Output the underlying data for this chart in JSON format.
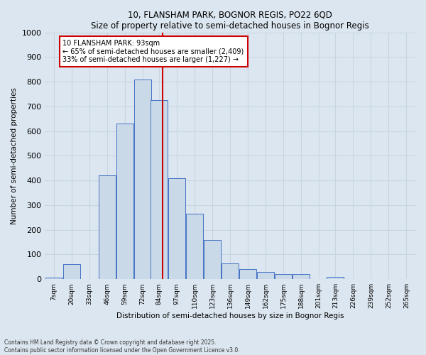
{
  "title1": "10, FLANSHAM PARK, BOGNOR REGIS, PO22 6QD",
  "title2": "Size of property relative to semi-detached houses in Bognor Regis",
  "xlabel": "Distribution of semi-detached houses by size in Bognor Regis",
  "ylabel": "Number of semi-detached properties",
  "bins": [
    7,
    20,
    33,
    46,
    59,
    72,
    84,
    97,
    110,
    123,
    136,
    149,
    162,
    175,
    188,
    201,
    213,
    226,
    239,
    252,
    265
  ],
  "bin_labels": [
    "7sqm",
    "20sqm",
    "33sqm",
    "46sqm",
    "59sqm",
    "72sqm",
    "84sqm",
    "97sqm",
    "110sqm",
    "123sqm",
    "136sqm",
    "149sqm",
    "162sqm",
    "175sqm",
    "188sqm",
    "201sqm",
    "213sqm",
    "226sqm",
    "239sqm",
    "252sqm",
    "265sqm"
  ],
  "values": [
    5,
    60,
    2,
    420,
    630,
    810,
    725,
    410,
    265,
    160,
    65,
    40,
    30,
    20,
    20,
    2,
    10,
    2,
    2,
    2,
    2
  ],
  "bar_color": "#c9d9e8",
  "bar_edge_color": "#4472c4",
  "grid_color": "#c8d4e0",
  "bg_color": "#dce6f0",
  "property_value": 93,
  "red_line_color": "#cc0000",
  "annotation_line1": "10 FLANSHAM PARK: 93sqm",
  "annotation_line2": "← 65% of semi-detached houses are smaller (2,409)",
  "annotation_line3": "33% of semi-detached houses are larger (1,227) →",
  "annotation_box_color": "#ffffff",
  "annotation_border_color": "#cc0000",
  "footer_text": "Contains HM Land Registry data © Crown copyright and database right 2025.\nContains public sector information licensed under the Open Government Licence v3.0.",
  "ylim": [
    0,
    1000
  ],
  "yticks": [
    0,
    100,
    200,
    300,
    400,
    500,
    600,
    700,
    800,
    900,
    1000
  ]
}
